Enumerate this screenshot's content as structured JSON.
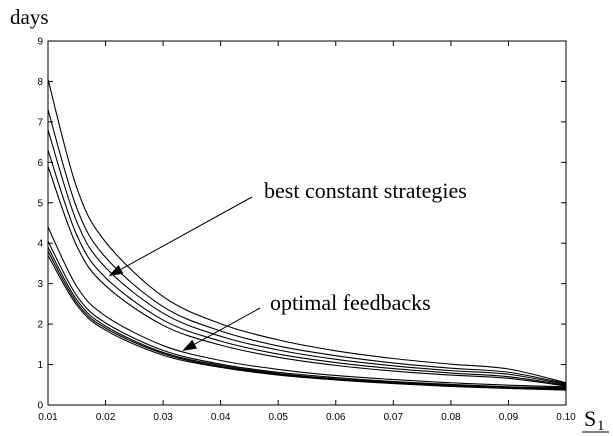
{
  "chart_data": {
    "type": "line",
    "title": "",
    "ylabel": "days",
    "xlabel_main": "S",
    "xlabel_sub": "1",
    "xlim": [
      0.01,
      0.1
    ],
    "ylim": [
      0,
      9
    ],
    "x_ticks": [
      "0.01",
      "0.02",
      "0.03",
      "0.04",
      "0.05",
      "0.06",
      "0.07",
      "0.08",
      "0.09",
      "0.10"
    ],
    "y_ticks": [
      "0",
      "1",
      "2",
      "3",
      "4",
      "5",
      "6",
      "7",
      "8",
      "9"
    ],
    "grid": false,
    "series": [
      {
        "group": "best constant strategies",
        "x": [
          0.01,
          0.015,
          0.02,
          0.03,
          0.04,
          0.05,
          0.06,
          0.07,
          0.08,
          0.09,
          0.1
        ],
        "y": [
          8.05,
          5.37,
          4.03,
          2.68,
          2.01,
          1.61,
          1.34,
          1.15,
          1.01,
          0.89,
          0.55
        ]
      },
      {
        "group": "best constant strategies",
        "x": [
          0.01,
          0.015,
          0.02,
          0.03,
          0.04,
          0.05,
          0.06,
          0.07,
          0.08,
          0.09,
          0.1
        ],
        "y": [
          7.3,
          4.87,
          3.65,
          2.43,
          1.83,
          1.46,
          1.22,
          1.04,
          0.91,
          0.81,
          0.53
        ]
      },
      {
        "group": "best constant strategies",
        "x": [
          0.01,
          0.015,
          0.02,
          0.03,
          0.04,
          0.05,
          0.06,
          0.07,
          0.08,
          0.09,
          0.1
        ],
        "y": [
          6.8,
          4.53,
          3.4,
          2.27,
          1.7,
          1.36,
          1.13,
          0.97,
          0.85,
          0.76,
          0.51
        ]
      },
      {
        "group": "best constant strategies",
        "x": [
          0.01,
          0.015,
          0.02,
          0.03,
          0.04,
          0.05,
          0.06,
          0.07,
          0.08,
          0.09,
          0.1
        ],
        "y": [
          6.3,
          4.2,
          3.15,
          2.1,
          1.58,
          1.26,
          1.05,
          0.9,
          0.79,
          0.7,
          0.49
        ]
      },
      {
        "group": "best constant strategies",
        "x": [
          0.01,
          0.015,
          0.02,
          0.03,
          0.04,
          0.05,
          0.06,
          0.07,
          0.08,
          0.09,
          0.1
        ],
        "y": [
          5.9,
          3.93,
          2.95,
          1.97,
          1.48,
          1.18,
          0.98,
          0.84,
          0.74,
          0.66,
          0.47
        ]
      },
      {
        "group": "optimal feedbacks",
        "x": [
          0.01,
          0.015,
          0.02,
          0.03,
          0.04,
          0.05,
          0.06,
          0.07,
          0.08,
          0.09,
          0.1
        ],
        "y": [
          4.4,
          2.93,
          2.2,
          1.47,
          1.1,
          0.88,
          0.73,
          0.63,
          0.55,
          0.49,
          0.45
        ]
      },
      {
        "group": "optimal feedbacks",
        "x": [
          0.01,
          0.015,
          0.02,
          0.03,
          0.04,
          0.05,
          0.06,
          0.07,
          0.08,
          0.09,
          0.1
        ],
        "y": [
          4.05,
          2.7,
          2.03,
          1.35,
          1.01,
          0.81,
          0.68,
          0.58,
          0.51,
          0.45,
          0.43
        ]
      },
      {
        "group": "optimal feedbacks",
        "x": [
          0.01,
          0.015,
          0.02,
          0.03,
          0.04,
          0.05,
          0.06,
          0.07,
          0.08,
          0.09,
          0.1
        ],
        "y": [
          3.9,
          2.6,
          1.95,
          1.3,
          0.98,
          0.78,
          0.65,
          0.56,
          0.49,
          0.43,
          0.41
        ]
      },
      {
        "group": "optimal feedbacks",
        "x": [
          0.01,
          0.015,
          0.02,
          0.03,
          0.04,
          0.05,
          0.06,
          0.07,
          0.08,
          0.09,
          0.1
        ],
        "y": [
          3.8,
          2.53,
          1.9,
          1.27,
          0.95,
          0.76,
          0.63,
          0.54,
          0.48,
          0.42,
          0.39
        ]
      },
      {
        "group": "optimal feedbacks",
        "x": [
          0.01,
          0.015,
          0.02,
          0.03,
          0.04,
          0.05,
          0.06,
          0.07,
          0.08,
          0.09,
          0.1
        ],
        "y": [
          3.7,
          2.47,
          1.85,
          1.23,
          0.93,
          0.74,
          0.62,
          0.53,
          0.46,
          0.41,
          0.37
        ]
      }
    ],
    "annotations": [
      {
        "text": "best constant strategies",
        "target_x": 0.0207,
        "target_y": 3.2
      },
      {
        "text": "optimal feedbacks",
        "target_x": 0.0335,
        "target_y": 1.35
      }
    ]
  }
}
